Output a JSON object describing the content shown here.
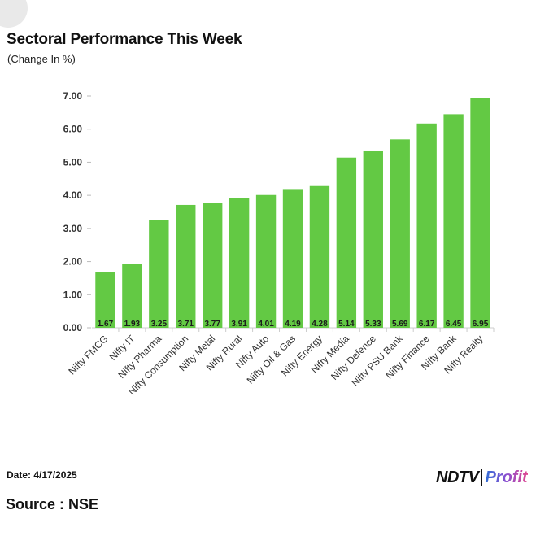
{
  "chart_data": {
    "type": "bar",
    "title": "Sectoral Performance This Week",
    "subtitle": "(Change In %)",
    "xlabel": "",
    "ylabel": "",
    "ylim": [
      0,
      7
    ],
    "yticks": [
      "0.00",
      "1.00",
      "2.00",
      "3.00",
      "4.00",
      "5.00",
      "6.00",
      "7.00"
    ],
    "categories": [
      "Nifty FMCG",
      "Nifty IT",
      "Nifty Pharma",
      "Nifty Consumption",
      "Nifty Metal",
      "Nifty Rural",
      "Nifty Auto",
      "Nifty Oil & Gas",
      "Nifty Energy",
      "Nifty Media",
      "Nifty Defence",
      "Nifty PSU Bank",
      "Nifty Finance",
      "Nifty Bank",
      "Nifty Realty"
    ],
    "values": [
      1.67,
      1.93,
      3.25,
      3.71,
      3.77,
      3.91,
      4.01,
      4.19,
      4.28,
      5.14,
      5.33,
      5.69,
      6.17,
      6.45,
      6.95
    ],
    "value_labels": [
      "1.67",
      "1.93",
      "3.25",
      "3.71",
      "3.77",
      "3.91",
      "4.01",
      "4.19",
      "4.28",
      "5.14",
      "5.33",
      "5.69",
      "6.17",
      "6.45",
      "6.95"
    ],
    "bar_color": "#63c944",
    "grid": false
  },
  "footer": {
    "date": "Date: 4/17/2025",
    "source": "Source : NSE"
  },
  "logo": {
    "ndtv": "NDTV",
    "profit": "Profit"
  },
  "colors": {
    "bar": "#63c944",
    "text": "#111111"
  }
}
